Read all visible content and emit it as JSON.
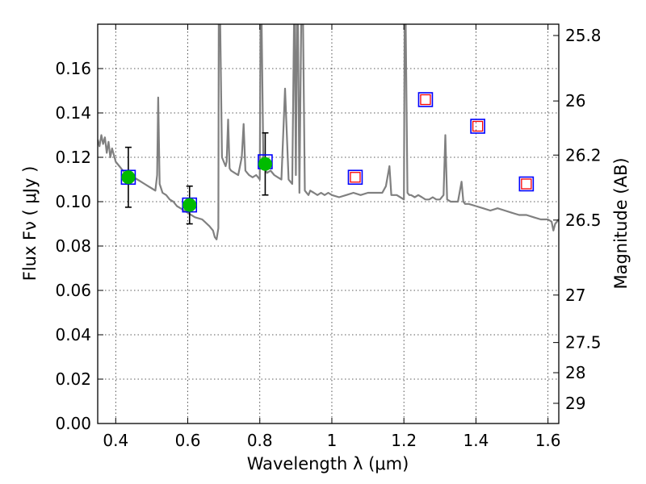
{
  "chart_data": {
    "type": "scatter",
    "title": "",
    "xlabel": "Wavelength  λ (μm)",
    "ylabel": "Flux  Fν  ( μJy )",
    "y2label": "Magnitude (AB)",
    "xlim": [
      0.35,
      1.63
    ],
    "ylim": [
      0.0,
      0.18
    ],
    "grid": true,
    "x_ticks": [
      {
        "value": 0.4,
        "label": "0.4"
      },
      {
        "value": 0.6,
        "label": "0.6"
      },
      {
        "value": 0.8,
        "label": "0.8"
      },
      {
        "value": 1.0,
        "label": "1"
      },
      {
        "value": 1.2,
        "label": "1.2"
      },
      {
        "value": 1.4,
        "label": "1.4"
      },
      {
        "value": 1.6,
        "label": "1.6"
      }
    ],
    "y_ticks": [
      {
        "value": 0.0,
        "label": "0.00"
      },
      {
        "value": 0.02,
        "label": "0.02"
      },
      {
        "value": 0.04,
        "label": "0.04"
      },
      {
        "value": 0.06,
        "label": "0.06"
      },
      {
        "value": 0.08,
        "label": "0.08"
      },
      {
        "value": 0.1,
        "label": "0.10"
      },
      {
        "value": 0.12,
        "label": "0.12"
      },
      {
        "value": 0.14,
        "label": "0.14"
      },
      {
        "value": 0.16,
        "label": "0.16"
      }
    ],
    "y2_ticks": [
      {
        "label": "25.8",
        "flux": 0.1749
      },
      {
        "label": "26",
        "flux": 0.1454
      },
      {
        "label": "26.2",
        "flux": 0.121
      },
      {
        "label": "26.5",
        "flux": 0.0917
      },
      {
        "label": "27",
        "flux": 0.0579
      },
      {
        "label": "27.5",
        "flux": 0.0365
      },
      {
        "label": "28",
        "flux": 0.0229
      },
      {
        "label": "29",
        "flux": 0.0091
      }
    ],
    "series": [
      {
        "kind": "line",
        "color": "#808080",
        "x": [
          0.35,
          0.355,
          0.36,
          0.365,
          0.37,
          0.375,
          0.38,
          0.385,
          0.39,
          0.4,
          0.41,
          0.42,
          0.43,
          0.44,
          0.45,
          0.46,
          0.47,
          0.48,
          0.49,
          0.5,
          0.51,
          0.515,
          0.518,
          0.522,
          0.53,
          0.54,
          0.55,
          0.56,
          0.57,
          0.58,
          0.59,
          0.6,
          0.62,
          0.64,
          0.66,
          0.67,
          0.675,
          0.68,
          0.685,
          0.686,
          0.69,
          0.695,
          0.7,
          0.705,
          0.708,
          0.712,
          0.716,
          0.72,
          0.73,
          0.74,
          0.75,
          0.755,
          0.76,
          0.765,
          0.77,
          0.78,
          0.79,
          0.8,
          0.802,
          0.805,
          0.81,
          0.82,
          0.83,
          0.84,
          0.85,
          0.86,
          0.87,
          0.88,
          0.89,
          0.895,
          0.897,
          0.9,
          0.903,
          0.906,
          0.91,
          0.915,
          0.92,
          0.925,
          0.93,
          0.935,
          0.94,
          0.95,
          0.96,
          0.97,
          0.98,
          0.99,
          1.0,
          1.02,
          1.04,
          1.06,
          1.08,
          1.1,
          1.12,
          1.14,
          1.15,
          1.16,
          1.165,
          1.17,
          1.18,
          1.19,
          1.2,
          1.202,
          1.205,
          1.21,
          1.215,
          1.22,
          1.23,
          1.24,
          1.25,
          1.26,
          1.27,
          1.28,
          1.29,
          1.3,
          1.31,
          1.315,
          1.32,
          1.33,
          1.34,
          1.35,
          1.36,
          1.365,
          1.37,
          1.38,
          1.4,
          1.42,
          1.44,
          1.46,
          1.48,
          1.5,
          1.52,
          1.54,
          1.56,
          1.58,
          1.6,
          1.61,
          1.615,
          1.62,
          1.63
        ],
        "y": [
          0.128,
          0.125,
          0.13,
          0.126,
          0.129,
          0.122,
          0.127,
          0.12,
          0.124,
          0.118,
          0.116,
          0.114,
          0.112,
          0.113,
          0.111,
          0.11,
          0.109,
          0.108,
          0.107,
          0.106,
          0.105,
          0.112,
          0.147,
          0.108,
          0.104,
          0.103,
          0.101,
          0.1,
          0.098,
          0.097,
          0.096,
          0.095,
          0.093,
          0.092,
          0.089,
          0.087,
          0.084,
          0.083,
          0.088,
          0.18,
          0.18,
          0.12,
          0.118,
          0.116,
          0.118,
          0.137,
          0.115,
          0.114,
          0.113,
          0.112,
          0.12,
          0.135,
          0.114,
          0.113,
          0.112,
          0.111,
          0.112,
          0.11,
          0.18,
          0.18,
          0.116,
          0.113,
          0.114,
          0.112,
          0.111,
          0.11,
          0.151,
          0.11,
          0.108,
          0.18,
          0.18,
          0.112,
          0.18,
          0.18,
          0.104,
          0.18,
          0.18,
          0.105,
          0.104,
          0.103,
          0.105,
          0.104,
          0.103,
          0.104,
          0.103,
          0.104,
          0.103,
          0.102,
          0.103,
          0.104,
          0.103,
          0.104,
          0.104,
          0.104,
          0.107,
          0.116,
          0.103,
          0.103,
          0.103,
          0.102,
          0.101,
          0.18,
          0.18,
          0.104,
          0.103,
          0.103,
          0.102,
          0.103,
          0.102,
          0.101,
          0.101,
          0.102,
          0.101,
          0.101,
          0.103,
          0.13,
          0.101,
          0.1,
          0.1,
          0.1,
          0.109,
          0.1,
          0.099,
          0.099,
          0.098,
          0.097,
          0.096,
          0.097,
          0.096,
          0.095,
          0.094,
          0.094,
          0.093,
          0.092,
          0.092,
          0.091,
          0.087,
          0.09,
          0.092
        ]
      },
      {
        "kind": "filled-circle-with-errorbar",
        "color": "#00bb00",
        "points": [
          {
            "x": 0.435,
            "y": 0.111,
            "yerr": 0.0135
          },
          {
            "x": 0.605,
            "y": 0.0985,
            "yerr": 0.0085
          },
          {
            "x": 0.815,
            "y": 0.117,
            "yerr": 0.014
          }
        ]
      },
      {
        "kind": "open-square-blue",
        "color": "#0000ff",
        "points": [
          {
            "x": 0.435,
            "y": 0.111
          },
          {
            "x": 0.605,
            "y": 0.0985
          },
          {
            "x": 0.815,
            "y": 0.118
          },
          {
            "x": 1.065,
            "y": 0.111
          },
          {
            "x": 1.26,
            "y": 0.146
          },
          {
            "x": 1.405,
            "y": 0.134
          },
          {
            "x": 1.54,
            "y": 0.108
          }
        ]
      },
      {
        "kind": "open-square-red",
        "color": "#ff0000",
        "points": [
          {
            "x": 1.065,
            "y": 0.111
          },
          {
            "x": 1.26,
            "y": 0.146
          },
          {
            "x": 1.405,
            "y": 0.134
          },
          {
            "x": 1.54,
            "y": 0.108
          }
        ]
      }
    ]
  }
}
